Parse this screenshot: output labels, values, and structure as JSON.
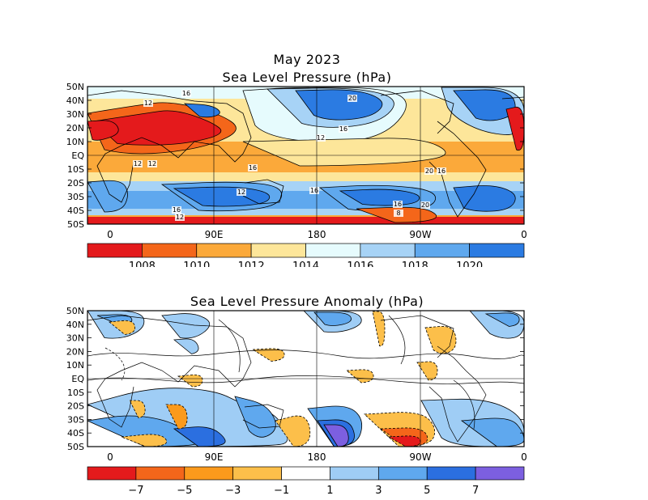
{
  "figure": {
    "title": "May 2023"
  },
  "panels": [
    {
      "id": "slp",
      "title": "Sea Level Pressure (hPa)",
      "lat_labels": [
        "50N",
        "40N",
        "30N",
        "20N",
        "10N",
        "EQ",
        "10S",
        "20S",
        "30S",
        "40S",
        "50S"
      ],
      "lon_labels": [
        "0",
        "90E",
        "180",
        "90W",
        "0"
      ],
      "colorbar": {
        "colors": [
          "#e41a1c",
          "#f4661a",
          "#fba93a",
          "#fde69a",
          "#e6fbfd",
          "#a7d3f6",
          "#5fa8ee",
          "#2b7be2"
        ],
        "labels": [
          "1008",
          "1010",
          "1012",
          "1014",
          "1016",
          "1018",
          "1020"
        ]
      },
      "contour_labels": [
        "16",
        "12",
        "20",
        "16",
        "12",
        "12",
        "12",
        "16",
        "12",
        "16",
        "20",
        "16",
        "16",
        "20",
        "16",
        "12",
        "8"
      ],
      "regions": [
        {
          "name": "north-pacific-high",
          "color": "#2b7be2"
        },
        {
          "name": "north-atlantic-high",
          "color": "#2b7be2"
        },
        {
          "name": "south-indian-high",
          "color": "#2b7be2"
        },
        {
          "name": "south-pacific-high",
          "color": "#2b7be2"
        },
        {
          "name": "south-atlantic-high",
          "color": "#2b7be2"
        },
        {
          "name": "asian-low",
          "color": "#e41a1c"
        },
        {
          "name": "african-low",
          "color": "#e41a1c"
        },
        {
          "name": "southern-ocean-low",
          "color": "#e41a1c"
        }
      ]
    },
    {
      "id": "slp-anom",
      "title": "Sea Level Pressure Anomaly (hPa)",
      "lat_labels": [
        "50N",
        "40N",
        "30N",
        "20N",
        "10N",
        "EQ",
        "10S",
        "20S",
        "30S",
        "40S",
        "50S"
      ],
      "lon_labels": [
        "0",
        "90E",
        "180",
        "90W",
        "0"
      ],
      "colorbar": {
        "colors": [
          "#e41a1c",
          "#f4661a",
          "#fb9a1c",
          "#fcbf4a",
          "#ffffff",
          "#9fcdf5",
          "#5fa8ee",
          "#2b6fe0",
          "#7c5fe0"
        ],
        "labels": [
          "−7",
          "−5",
          "−3",
          "−1",
          "1",
          "3",
          "5",
          "7"
        ]
      },
      "regions": [
        {
          "name": "positive-anomaly-pacific",
          "color": "#7c5fe0"
        },
        {
          "name": "negative-anomaly-southern",
          "color": "#e41a1c"
        }
      ]
    }
  ]
}
